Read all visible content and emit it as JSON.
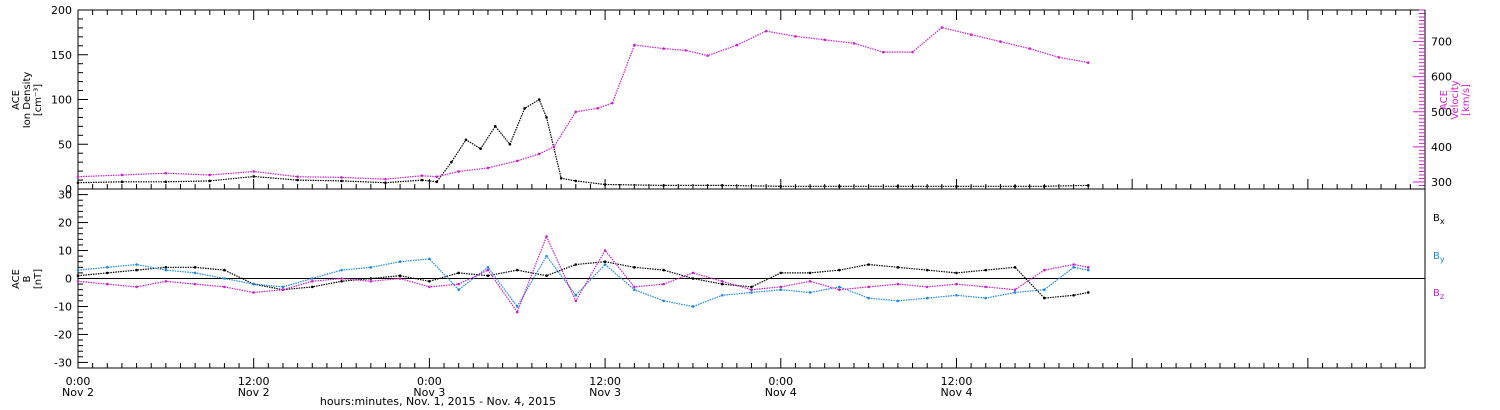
{
  "colors": {
    "density": "#000000",
    "velocity": "#cc22cc",
    "bx": "#000000",
    "by": "#1e88e5",
    "bz": "#cc22cc",
    "axis": "#000000"
  },
  "chart_data": [
    {
      "type": "scatter",
      "panel": "top",
      "xlim": [
        0,
        92
      ],
      "x_unit": "hours since Nov 2, 2015 00:00",
      "left_axis": {
        "label_lines": [
          "ACE",
          "Ion Density",
          "[cm⁻³]"
        ],
        "ylim": [
          0,
          200
        ],
        "ticks": [
          0,
          50,
          100,
          150,
          200
        ]
      },
      "right_axis": {
        "label_lines": [
          "ACE",
          "Velocity",
          "[km/s]"
        ],
        "ylim": [
          280,
          790
        ],
        "ticks": [
          300,
          400,
          500,
          600,
          700
        ]
      },
      "series": [
        {
          "name": "Ion Density",
          "axis": "left",
          "color": "#000000",
          "x": [
            0,
            3,
            6,
            9,
            12,
            15,
            18,
            21,
            23.5,
            24.5,
            25.5,
            26.5,
            27.5,
            28.5,
            29.5,
            30.5,
            31.5,
            32,
            33,
            34,
            36,
            40,
            44,
            48,
            52,
            56,
            60,
            64,
            66,
            69
          ],
          "y": [
            7,
            8,
            8,
            9,
            14,
            10,
            9,
            7,
            10,
            8,
            30,
            55,
            45,
            70,
            50,
            90,
            100,
            80,
            12,
            9,
            5,
            4,
            4,
            3,
            3,
            3,
            3,
            3,
            3,
            4
          ]
        },
        {
          "name": "Velocity",
          "axis": "right",
          "color": "#cc22cc",
          "x": [
            0,
            3,
            6,
            9,
            12,
            15,
            18,
            21,
            23.5,
            24.5,
            26,
            28,
            30,
            31.5,
            32.5,
            34,
            35.5,
            36.5,
            38,
            40,
            41.5,
            43,
            45,
            47,
            49,
            51,
            53,
            55,
            57,
            59,
            61,
            63,
            65,
            67,
            69
          ],
          "y": [
            315,
            320,
            325,
            320,
            330,
            315,
            313,
            308,
            318,
            315,
            330,
            340,
            360,
            380,
            400,
            500,
            510,
            525,
            690,
            680,
            675,
            660,
            690,
            730,
            715,
            705,
            695,
            670,
            670,
            740,
            720,
            700,
            680,
            655,
            640
          ]
        }
      ]
    },
    {
      "type": "line",
      "panel": "bottom",
      "xlim": [
        0,
        92
      ],
      "x_unit": "hours since Nov 2, 2015 00:00",
      "y_axis": {
        "label_lines": [
          "ACE",
          "B",
          "[nT]"
        ],
        "ylim": [
          -32,
          32
        ],
        "ticks": [
          -30,
          -20,
          -10,
          0,
          10,
          20,
          30
        ]
      },
      "legend_placement": "right",
      "series": [
        {
          "name": "Bx",
          "color": "#000000",
          "x": [
            0,
            2,
            4,
            6,
            8,
            10,
            12,
            14,
            16,
            18,
            20,
            22,
            24,
            26,
            28,
            30,
            32,
            34,
            36,
            38,
            40,
            42,
            44,
            46,
            48,
            50,
            52,
            54,
            56,
            58,
            60,
            62,
            64,
            66,
            68,
            69
          ],
          "y": [
            1,
            2,
            3,
            4,
            4,
            3,
            -2,
            -4,
            -3,
            -1,
            0,
            1,
            -1,
            2,
            1,
            3,
            1,
            5,
            6,
            4,
            3,
            0,
            -2,
            -3,
            2,
            2,
            3,
            5,
            4,
            3,
            2,
            3,
            4,
            -7,
            -6,
            -5
          ]
        },
        {
          "name": "By",
          "color": "#1e88e5",
          "x": [
            0,
            2,
            4,
            6,
            8,
            10,
            12,
            14,
            16,
            18,
            20,
            22,
            24,
            26,
            28,
            30,
            32,
            34,
            36,
            38,
            40,
            42,
            44,
            46,
            48,
            50,
            52,
            54,
            56,
            58,
            60,
            62,
            64,
            66,
            68,
            69
          ],
          "y": [
            3,
            4,
            5,
            3,
            2,
            0,
            -2,
            -3,
            0,
            3,
            4,
            6,
            7,
            -4,
            4,
            -10,
            8,
            -6,
            5,
            -4,
            -8,
            -10,
            -6,
            -5,
            -4,
            -5,
            -3,
            -7,
            -8,
            -7,
            -6,
            -7,
            -5,
            -4,
            4,
            3
          ]
        },
        {
          "name": "Bz",
          "color": "#cc22cc",
          "x": [
            0,
            2,
            4,
            6,
            8,
            10,
            12,
            14,
            16,
            18,
            20,
            22,
            24,
            26,
            28,
            30,
            32,
            34,
            36,
            38,
            40,
            42,
            44,
            46,
            48,
            50,
            52,
            54,
            56,
            58,
            60,
            62,
            64,
            66,
            68,
            69
          ],
          "y": [
            -1,
            -2,
            -3,
            -1,
            -2,
            -3,
            -5,
            -4,
            -1,
            0,
            -1,
            0,
            -3,
            -2,
            3,
            -12,
            15,
            -8,
            10,
            -3,
            -2,
            2,
            -1,
            -4,
            -3,
            -1,
            -4,
            -3,
            -2,
            -3,
            -2,
            -3,
            -4,
            3,
            5,
            4
          ]
        }
      ]
    }
  ],
  "x_axis": {
    "ticks": [
      {
        "hour": 0,
        "time": "0:00",
        "date": "Nov 2"
      },
      {
        "hour": 12,
        "time": "12:00",
        "date": "Nov 2"
      },
      {
        "hour": 24,
        "time": "0:00",
        "date": "Nov 3"
      },
      {
        "hour": 36,
        "time": "12:00",
        "date": "Nov 3"
      },
      {
        "hour": 48,
        "time": "0:00",
        "date": "Nov 4"
      },
      {
        "hour": 60,
        "time": "12:00",
        "date": "Nov 4"
      }
    ],
    "title": "hours:minutes, Nov.  1, 2015 - Nov.  4, 2015"
  },
  "legend": [
    {
      "name": "Bx",
      "base": "B",
      "sub": "x"
    },
    {
      "name": "By",
      "base": "B",
      "sub": "y"
    },
    {
      "name": "Bz",
      "base": "B",
      "sub": "z"
    }
  ]
}
